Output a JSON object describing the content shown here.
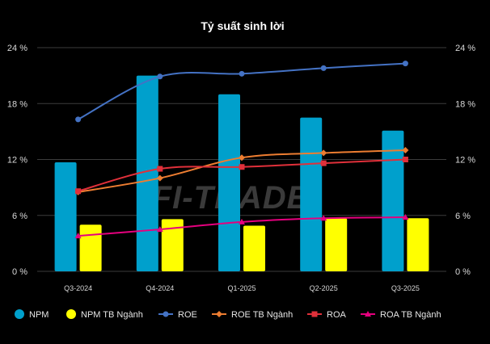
{
  "chart_data": {
    "type": "bar+line",
    "title": "Tỷ suất sinh lời",
    "categories": [
      "Q3-2024",
      "Q4-2024",
      "Q1-2025",
      "Q2-2025",
      "Q3-2025"
    ],
    "ylim": [
      0,
      24
    ],
    "yticks": [
      0,
      6,
      12,
      18,
      24
    ],
    "ytick_labels": [
      "0 %",
      "6 %",
      "12 %",
      "18 %",
      "24 %"
    ],
    "grid": true,
    "legend_position": "bottom",
    "bars": [
      {
        "name": "NPM",
        "color": "#00a0cc",
        "values": [
          11.7,
          21.0,
          19.0,
          16.5,
          15.1
        ]
      },
      {
        "name": "NPM TB Ngành",
        "color": "#ffff00",
        "values": [
          5.0,
          5.6,
          4.9,
          5.7,
          5.7
        ]
      }
    ],
    "lines": [
      {
        "name": "ROE",
        "color": "#4472c4",
        "marker": "circle",
        "values": [
          16.3,
          20.9,
          21.2,
          21.8,
          22.3
        ]
      },
      {
        "name": "ROE TB Ngành",
        "color": "#ed7d31",
        "marker": "diamond",
        "values": [
          8.5,
          10.0,
          12.2,
          12.7,
          13.0
        ]
      },
      {
        "name": "ROA",
        "color": "#e0303a",
        "marker": "square",
        "values": [
          8.6,
          11.0,
          11.2,
          11.6,
          12.0
        ]
      },
      {
        "name": "ROA TB Ngành",
        "color": "#e6007e",
        "marker": "triangle",
        "values": [
          3.8,
          4.5,
          5.3,
          5.7,
          5.8
        ]
      }
    ],
    "watermark": "FI-TRADE"
  }
}
